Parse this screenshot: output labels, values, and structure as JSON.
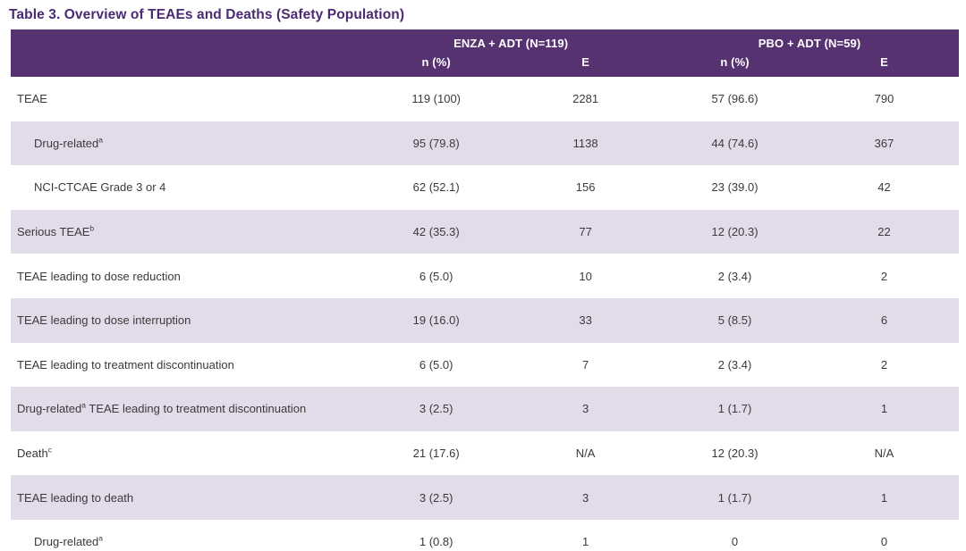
{
  "title": "Table 3. Overview of TEAEs and Deaths (Safety Population)",
  "colors": {
    "header_background": "#563271",
    "title_text": "#4B2A74",
    "shaded_row_background": "#E2DCEA",
    "body_text": "#3A3A3A",
    "bottom_rule": "#6A4791"
  },
  "table": {
    "groups": [
      {
        "label": "ENZA + ADT (N=119)"
      },
      {
        "label": "PBO + ADT (N=59)"
      }
    ],
    "subheaders": [
      "n (%)",
      "E",
      "n (%)",
      "E"
    ],
    "rows": [
      {
        "pre": "TEAE",
        "sup": "",
        "post": "",
        "indent": false,
        "values": [
          "119 (100)",
          "2281",
          "57 (96.6)",
          "790"
        ]
      },
      {
        "pre": "Drug-related",
        "sup": "a",
        "post": "",
        "indent": true,
        "values": [
          "95 (79.8)",
          "1138",
          "44 (74.6)",
          "367"
        ]
      },
      {
        "pre": "NCI-CTCAE Grade 3 or 4",
        "sup": "",
        "post": "",
        "indent": true,
        "values": [
          "62 (52.1)",
          "156",
          "23 (39.0)",
          "42"
        ]
      },
      {
        "pre": "Serious TEAE",
        "sup": "b",
        "post": "",
        "indent": false,
        "values": [
          "42 (35.3)",
          "77",
          "12 (20.3)",
          "22"
        ]
      },
      {
        "pre": "TEAE leading to dose reduction",
        "sup": "",
        "post": "",
        "indent": false,
        "values": [
          "6 (5.0)",
          "10",
          "2 (3.4)",
          "2"
        ]
      },
      {
        "pre": "TEAE leading to dose interruption",
        "sup": "",
        "post": "",
        "indent": false,
        "values": [
          "19 (16.0)",
          "33",
          "5 (8.5)",
          "6"
        ]
      },
      {
        "pre": "TEAE leading to treatment discontinuation",
        "sup": "",
        "post": "",
        "indent": false,
        "values": [
          "6 (5.0)",
          "7",
          "2 (3.4)",
          "2"
        ]
      },
      {
        "pre": "Drug-related",
        "sup": "a",
        "post": " TEAE leading to treatment discontinuation",
        "indent": false,
        "values": [
          "3 (2.5)",
          "3",
          "1 (1.7)",
          "1"
        ]
      },
      {
        "pre": "Death",
        "sup": "c",
        "post": "",
        "indent": false,
        "values": [
          "21 (17.6)",
          "N/A",
          "12 (20.3)",
          "N/A"
        ]
      },
      {
        "pre": "TEAE leading to death",
        "sup": "",
        "post": "",
        "indent": false,
        "values": [
          "3 (2.5)",
          "3",
          "1 (1.7)",
          "1"
        ]
      },
      {
        "pre": "Drug-related",
        "sup": "a",
        "post": "",
        "indent": true,
        "values": [
          "1 (0.8)",
          "1",
          "0",
          "0"
        ]
      }
    ]
  }
}
